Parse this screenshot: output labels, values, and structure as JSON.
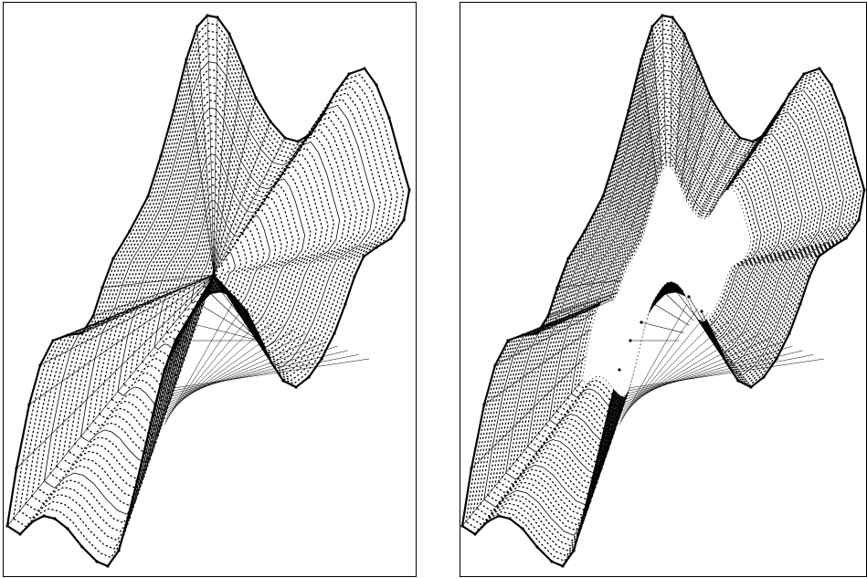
{
  "figure": {
    "panels": [
      {
        "name": "left",
        "variant": "full-mesh",
        "description_label": ""
      },
      {
        "name": "right",
        "variant": "mesh-with-hole",
        "description_label": ""
      }
    ],
    "colors": {
      "stroke": "#000000",
      "background": "#ffffff"
    }
  }
}
